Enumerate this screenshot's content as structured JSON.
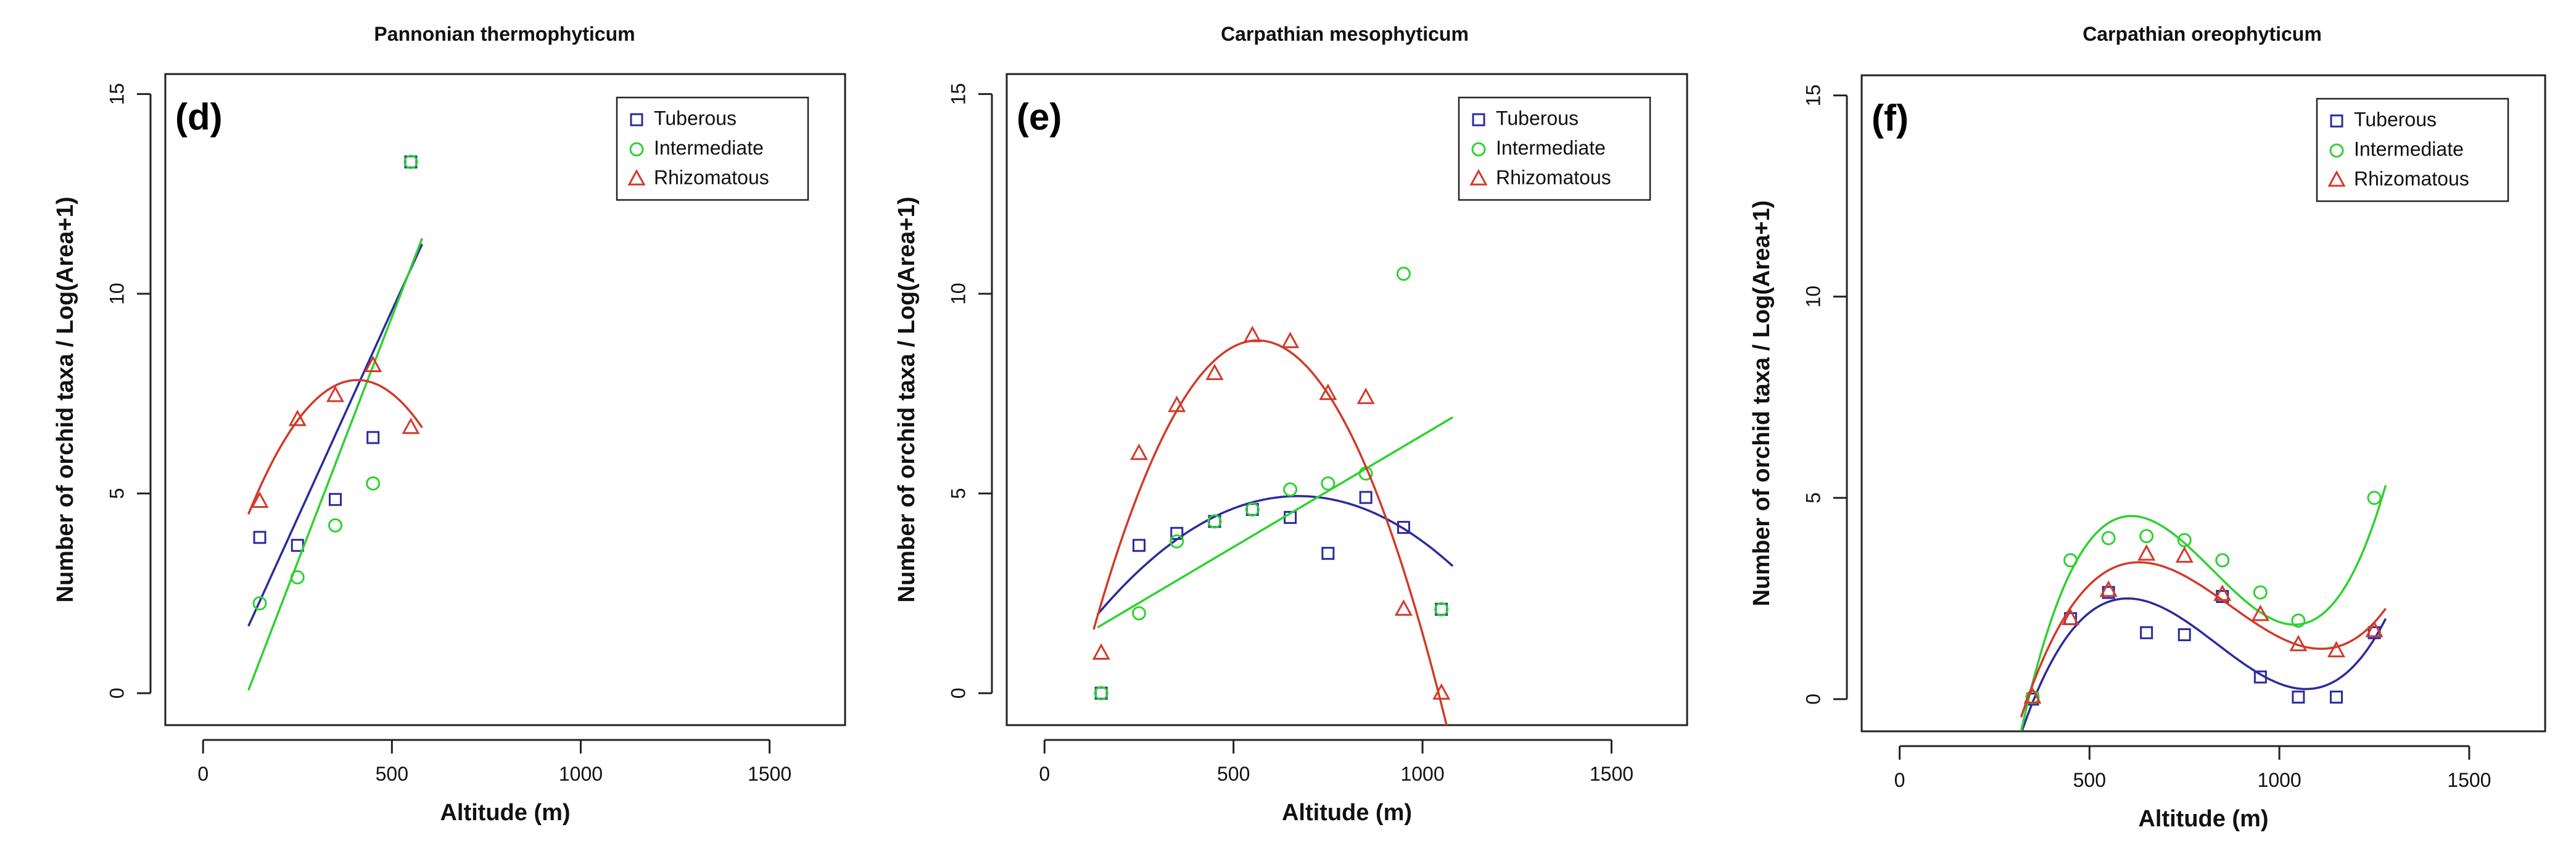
{
  "colors": {
    "tuberous": "#2b2b9e",
    "intermediate": "#2fd12f",
    "rhizomatous": "#d23a2a",
    "axis": "#222222"
  },
  "legend_labels": [
    "Tuberous",
    "Intermediate",
    "Rhizomatous"
  ],
  "chart_data": [
    {
      "type": "scatter",
      "panel": "(d)",
      "title": "Pannonian thermophyticum",
      "xlabel": "Altitude (m)",
      "ylabel": "Number of orchid taxa / Log(Area+1)",
      "xlim": [
        -100,
        1700
      ],
      "ylim": [
        -0.8,
        15.5
      ],
      "xticks": [
        0,
        500,
        1000,
        1500
      ],
      "xtick_labels": [
        "0",
        "500",
        "1000",
        "1500"
      ],
      "yticks": [
        0,
        5,
        10,
        15
      ],
      "ytick_labels": [
        "0",
        "5",
        "10",
        "15"
      ],
      "series": [
        {
          "name": "Tuberous",
          "key": "tuberous",
          "marker": "square",
          "x": [
            150,
            250,
            350,
            450,
            550
          ],
          "y": [
            3.9,
            3.7,
            4.85,
            6.4,
            13.3
          ],
          "fit": {
            "kind": "poly",
            "coef": [
              -0.82,
              0.0208
            ],
            "range": [
              120,
              580
            ]
          }
        },
        {
          "name": "Intermediate",
          "key": "intermediate",
          "marker": "circle",
          "x": [
            150,
            250,
            350,
            450,
            550
          ],
          "y": [
            2.25,
            2.9,
            4.2,
            5.25,
            13.3
          ],
          "fit": {
            "kind": "poly",
            "coef": [
              -2.88,
              0.0246
            ],
            "range": [
              120,
              580
            ]
          }
        },
        {
          "name": "Rhizomatous",
          "key": "rhizomatous",
          "marker": "triangle",
          "x": [
            150,
            250,
            350,
            450,
            550
          ],
          "y": [
            4.8,
            6.85,
            7.45,
            8.2,
            6.65
          ],
          "fit": {
            "kind": "poly",
            "coef": [
              1.1,
              0.033,
              -4.04e-05
            ],
            "range": [
              120,
              580
            ]
          }
        }
      ]
    },
    {
      "type": "scatter",
      "panel": "(e)",
      "title": "Carpathian mesophyticum",
      "xlabel": "Altitude (m)",
      "ylabel": "Number of orchid taxa / Log(Area+1)",
      "xlim": [
        -100,
        1700
      ],
      "ylim": [
        -0.8,
        15.5
      ],
      "xticks": [
        0,
        500,
        1000,
        1500
      ],
      "xtick_labels": [
        "0",
        "500",
        "1000",
        "1500"
      ],
      "yticks": [
        0,
        5,
        10,
        15
      ],
      "ytick_labels": [
        "0",
        "5",
        "10",
        "15"
      ],
      "series": [
        {
          "name": "Tuberous",
          "key": "tuberous",
          "marker": "square",
          "x": [
            150,
            250,
            350,
            450,
            550,
            650,
            750,
            850,
            950,
            1050
          ],
          "y": [
            0,
            3.7,
            4.0,
            4.3,
            4.6,
            4.4,
            3.5,
            4.9,
            4.15,
            2.1
          ],
          "fit": {
            "kind": "poly",
            "coef": [
              0.2,
              0.0141,
              -1.05e-05
            ],
            "range": [
              140,
              1080
            ]
          }
        },
        {
          "name": "Intermediate",
          "key": "intermediate",
          "marker": "circle",
          "x": [
            150,
            250,
            350,
            450,
            550,
            650,
            750,
            850,
            950,
            1050
          ],
          "y": [
            0,
            2.0,
            3.8,
            4.3,
            4.6,
            5.1,
            5.25,
            5.5,
            10.5,
            2.1
          ],
          "fit": {
            "kind": "poly",
            "coef": [
              0.86,
              0.0056
            ],
            "range": [
              140,
              1080
            ]
          }
        },
        {
          "name": "Rhizomatous",
          "key": "rhizomatous",
          "marker": "triangle",
          "x": [
            150,
            250,
            350,
            450,
            550,
            650,
            750,
            850,
            950,
            1050
          ],
          "y": [
            1.0,
            6.0,
            7.2,
            8.0,
            8.95,
            8.8,
            7.5,
            7.4,
            2.1,
            0
          ],
          "fit": {
            "kind": "poly",
            "coef": [
              -3.4,
              0.0434,
              -3.85e-05
            ],
            "range": [
              130,
              1070
            ]
          }
        }
      ]
    },
    {
      "type": "scatter",
      "panel": "(f)",
      "title": "Carpathian oreophyticum",
      "xlabel": "Altitude (m)",
      "ylabel": "Number of orchid taxa / Log(Area+1)",
      "xlim": [
        -100,
        1700
      ],
      "ylim": [
        -0.8,
        15.5
      ],
      "xticks": [
        0,
        500,
        1000,
        1500
      ],
      "xtick_labels": [
        "0",
        "500",
        "1000",
        "1500"
      ],
      "yticks": [
        0,
        5,
        10,
        15
      ],
      "ytick_labels": [
        "0",
        "5",
        "10",
        "15"
      ],
      "series": [
        {
          "name": "Tuberous",
          "key": "tuberous",
          "marker": "square",
          "x": [
            350,
            450,
            550,
            650,
            750,
            850,
            950,
            1050,
            1150,
            1250
          ],
          "y": [
            0,
            2.0,
            2.65,
            1.65,
            1.6,
            2.55,
            0.55,
            0.05,
            0.05,
            1.65
          ],
          "fit": {
            "kind": "cubic",
            "peak": [
              600,
              2.5
            ],
            "trough": [
              1070,
              0.25
            ],
            "range": [
              320,
              1280
            ]
          }
        },
        {
          "name": "Intermediate",
          "key": "intermediate",
          "marker": "circle",
          "x": [
            350,
            450,
            550,
            650,
            750,
            850,
            950,
            1050,
            1250
          ],
          "y": [
            0.05,
            3.45,
            4.0,
            4.05,
            3.95,
            3.45,
            2.65,
            1.95,
            5.0
          ],
          "fit": {
            "kind": "cubic",
            "peak": [
              610,
              4.55
            ],
            "trough": [
              1040,
              1.85
            ],
            "range": [
              320,
              1280
            ]
          }
        },
        {
          "name": "Rhizomatous",
          "key": "rhizomatous",
          "marker": "triangle",
          "x": [
            350,
            450,
            550,
            650,
            750,
            850,
            950,
            1050,
            1150,
            1250
          ],
          "y": [
            0.05,
            2.0,
            2.7,
            3.6,
            3.55,
            2.6,
            2.1,
            1.35,
            1.2,
            1.7
          ],
          "fit": {
            "kind": "cubic",
            "peak": [
              630,
              3.4
            ],
            "trough": [
              1110,
              1.25
            ],
            "range": [
              320,
              1280
            ]
          }
        }
      ]
    }
  ]
}
